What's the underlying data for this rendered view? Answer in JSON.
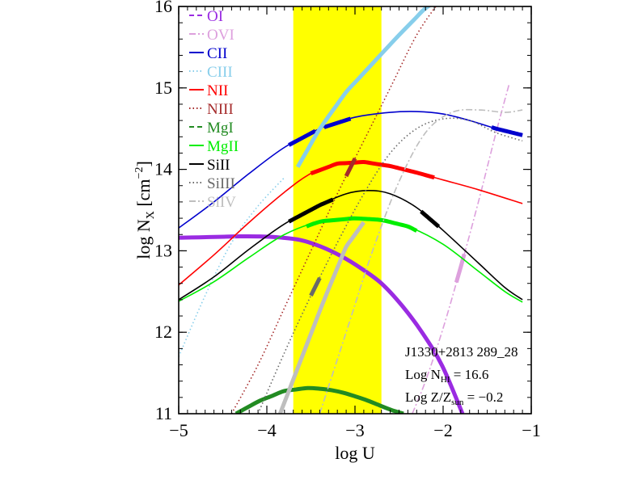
{
  "chart_data": {
    "type": "line",
    "xlabel": "log U",
    "ylabel_main": "log N",
    "ylabel_sub": "X",
    "ylabel_unit_pre": " [cm",
    "ylabel_unit_sup": "−2",
    "ylabel_unit_post": "]",
    "xlim": [
      -5,
      -1
    ],
    "ylim": [
      11,
      16
    ],
    "xticks": [
      {
        "value": -5,
        "label": "−5"
      },
      {
        "value": -4,
        "label": "−4"
      },
      {
        "value": -3,
        "label": "−3"
      },
      {
        "value": -2,
        "label": "−2"
      },
      {
        "value": -1,
        "label": "−1"
      }
    ],
    "yticks": [
      {
        "value": 11,
        "label": "11"
      },
      {
        "value": 12,
        "label": "12"
      },
      {
        "value": 13,
        "label": "13"
      },
      {
        "value": 14,
        "label": "14"
      },
      {
        "value": 15,
        "label": "15"
      },
      {
        "value": 16,
        "label": "16"
      }
    ],
    "shaded_region": {
      "x0": -3.7,
      "x1": -2.7,
      "color": "#ffff00"
    },
    "series": [
      {
        "name": "OI",
        "color": "#9a2be2",
        "style": "dashed",
        "x": [
          -5,
          -4.6,
          -4.2,
          -3.9,
          -3.6,
          -3.3,
          -3.0,
          -2.7,
          -2.4,
          -2.1,
          -1.9,
          -1.78
        ],
        "y": [
          13.16,
          13.17,
          13.18,
          13.17,
          13.13,
          13.02,
          12.84,
          12.6,
          12.25,
          11.78,
          11.35,
          11.0
        ],
        "thick": [
          [
            -5,
            -1.78
          ]
        ]
      },
      {
        "name": "OVI",
        "color": "#dda0dd",
        "style": "dashdot",
        "x": [
          -2.35,
          -2.2,
          -2.0,
          -1.8,
          -1.6,
          -1.4,
          -1.25
        ],
        "y": [
          11.0,
          11.4,
          12.05,
          12.8,
          13.6,
          14.45,
          15.05
        ],
        "thick": [
          [
            -1.85,
            -1.76
          ]
        ]
      },
      {
        "name": "CII",
        "color": "#0000cd",
        "style": "solid",
        "x": [
          -5,
          -4.6,
          -4.2,
          -3.8,
          -3.4,
          -3.0,
          -2.6,
          -2.3,
          -2.0,
          -1.7,
          -1.4,
          -1.1
        ],
        "y": [
          13.28,
          13.6,
          13.95,
          14.27,
          14.5,
          14.64,
          14.7,
          14.71,
          14.68,
          14.6,
          14.5,
          14.42
        ],
        "thick": [
          [
            -3.75,
            -3.45
          ],
          [
            -3.35,
            -3.05
          ],
          [
            -1.45,
            -1.1
          ]
        ]
      },
      {
        "name": "CIII",
        "color": "#87ceeb",
        "style": "dotted",
        "x": [
          -5,
          -4.7,
          -4.4,
          -4.1,
          -3.8
        ],
        "y": [
          11.7,
          12.45,
          13.1,
          13.55,
          13.9
        ],
        "thick": []
      },
      {
        "name": "CIIIthick",
        "color": "#87ceeb",
        "style": "solid",
        "x": [
          -3.65,
          -3.4,
          -3.1,
          -2.8,
          -2.5,
          -2.2,
          -2.1
        ],
        "y": [
          14.03,
          14.5,
          14.95,
          15.3,
          15.65,
          15.98,
          16.05
        ],
        "thick": [
          [
            -3.65,
            -2.1
          ]
        ]
      },
      {
        "name": "NII",
        "color": "#ff0000",
        "style": "solid",
        "x": [
          -5,
          -4.6,
          -4.2,
          -3.8,
          -3.5,
          -3.2,
          -2.9,
          -2.6,
          -2.3,
          -2.0,
          -1.6,
          -1.1
        ],
        "y": [
          12.58,
          12.95,
          13.35,
          13.72,
          13.95,
          14.07,
          14.09,
          14.04,
          13.96,
          13.87,
          13.75,
          13.58
        ],
        "thick": [
          [
            -3.5,
            -2.1
          ]
        ]
      },
      {
        "name": "NIII",
        "color": "#a52a2a",
        "style": "dotted",
        "x": [
          -4.4,
          -4.1,
          -3.8,
          -3.5,
          -3.2,
          -2.9,
          -2.6,
          -2.3,
          -2.05
        ],
        "y": [
          11.0,
          11.6,
          12.3,
          13.0,
          13.7,
          14.35,
          15.0,
          15.65,
          16.05
        ],
        "thick": [
          [
            -3.1,
            -3.0
          ]
        ]
      },
      {
        "name": "MgI",
        "color": "#228b22",
        "style": "dashed",
        "x": [
          -4.35,
          -4.1,
          -3.8,
          -3.5,
          -3.2,
          -2.9,
          -2.6,
          -2.45
        ],
        "y": [
          11.0,
          11.15,
          11.28,
          11.32,
          11.28,
          11.18,
          11.05,
          11.0
        ],
        "thick": [
          [
            -4.35,
            -2.45
          ]
        ]
      },
      {
        "name": "MgII",
        "color": "#00ee00",
        "style": "solid",
        "x": [
          -5,
          -4.6,
          -4.2,
          -3.8,
          -3.4,
          -3.0,
          -2.7,
          -2.4,
          -2.0,
          -1.6,
          -1.3,
          -1.1
        ],
        "y": [
          12.38,
          12.62,
          12.92,
          13.2,
          13.36,
          13.4,
          13.38,
          13.3,
          13.08,
          12.75,
          12.5,
          12.37
        ],
        "thick": [
          [
            -3.55,
            -2.3
          ]
        ]
      },
      {
        "name": "SiII",
        "color": "#000000",
        "style": "solid",
        "x": [
          -5,
          -4.6,
          -4.2,
          -3.8,
          -3.4,
          -3.1,
          -2.85,
          -2.6,
          -2.3,
          -2.0,
          -1.6,
          -1.3,
          -1.1
        ],
        "y": [
          12.4,
          12.68,
          13.02,
          13.33,
          13.56,
          13.7,
          13.74,
          13.7,
          13.53,
          13.25,
          12.85,
          12.55,
          12.4
        ],
        "thick": [
          [
            -3.75,
            -3.25
          ],
          [
            -2.25,
            -2.05
          ]
        ]
      },
      {
        "name": "SiIII",
        "color": "#696969",
        "style": "dotted",
        "x": [
          -4.1,
          -3.8,
          -3.5,
          -3.2,
          -2.9,
          -2.6,
          -2.3,
          -2.0,
          -1.7,
          -1.4,
          -1.1
        ],
        "y": [
          11.0,
          11.75,
          12.45,
          13.1,
          13.7,
          14.2,
          14.5,
          14.62,
          14.6,
          14.45,
          14.35
        ],
        "thick": [
          [
            -3.5,
            -3.4
          ]
        ]
      },
      {
        "name": "SiIV",
        "color": "#bebebe",
        "style": "dashdot",
        "x": [
          -3.4,
          -3.1,
          -2.8,
          -2.5,
          -2.2,
          -1.9,
          -1.6,
          -1.3,
          -1.1
        ],
        "y": [
          11.0,
          12.0,
          13.0,
          13.85,
          14.45,
          14.7,
          14.73,
          14.7,
          14.73
        ],
        "thick": []
      },
      {
        "name": "SiIVthick",
        "color": "#bebebe",
        "style": "solid",
        "x": [
          -3.85,
          -3.6,
          -3.35,
          -3.1,
          -2.9
        ],
        "y": [
          11.0,
          11.7,
          12.4,
          13.05,
          13.35
        ],
        "thick": [
          [
            -3.85,
            -2.9
          ]
        ]
      }
    ],
    "legend": {
      "placement": "top-left",
      "entries": [
        {
          "label": "OI",
          "color": "#9a2be2",
          "style": "dashed"
        },
        {
          "label": "OVI",
          "color": "#dda0dd",
          "style": "dashdot"
        },
        {
          "label": "CII",
          "color": "#0000cd",
          "style": "solid"
        },
        {
          "label": "CIII",
          "color": "#87ceeb",
          "style": "dotted"
        },
        {
          "label": "NII",
          "color": "#ff0000",
          "style": "solid"
        },
        {
          "label": "NIII",
          "color": "#a52a2a",
          "style": "dotted"
        },
        {
          "label": "MgI",
          "color": "#228b22",
          "style": "dashed"
        },
        {
          "label": "MgII",
          "color": "#00ee00",
          "style": "solid"
        },
        {
          "label": "SiII",
          "color": "#000000",
          "style": "solid"
        },
        {
          "label": "SiIII",
          "color": "#696969",
          "style": "dotted"
        },
        {
          "label": "SiIV",
          "color": "#bebebe",
          "style": "dashdot"
        }
      ]
    },
    "annotations": {
      "object": "J1330+2813 289_28",
      "nhi_pre": "Log N",
      "nhi_sub": "HI",
      "nhi_post": " = 16.6",
      "z_pre": "Log Z/Z",
      "z_sub": "sun",
      "z_post": " = −0.2"
    }
  }
}
